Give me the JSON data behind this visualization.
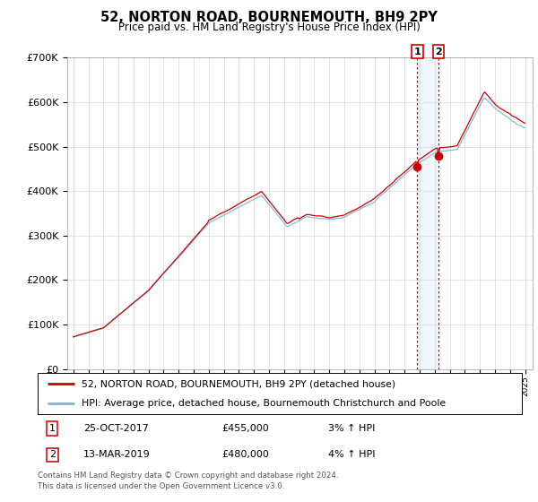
{
  "title": "52, NORTON ROAD, BOURNEMOUTH, BH9 2PY",
  "subtitle": "Price paid vs. HM Land Registry's House Price Index (HPI)",
  "ylim": [
    0,
    700000
  ],
  "yticks": [
    0,
    100000,
    200000,
    300000,
    400000,
    500000,
    600000,
    700000
  ],
  "ytick_labels": [
    "£0",
    "£100K",
    "£200K",
    "£300K",
    "£400K",
    "£500K",
    "£600K",
    "£700K"
  ],
  "sale1_price": 455000,
  "sale2_price": 480000,
  "sale1_label": "25-OCT-2017",
  "sale2_label": "13-MAR-2019",
  "sale1_pct": "3% ↑ HPI",
  "sale2_pct": "4% ↑ HPI",
  "sale1_price_str": "£455,000",
  "sale2_price_str": "£480,000",
  "legend1": "52, NORTON ROAD, BOURNEMOUTH, BH9 2PY (detached house)",
  "legend2": "HPI: Average price, detached house, Bournemouth Christchurch and Poole",
  "footer1": "Contains HM Land Registry data © Crown copyright and database right 2024.",
  "footer2": "This data is licensed under the Open Government Licence v3.0.",
  "hpi_color": "#7ab4d8",
  "sale_color": "#cc0000",
  "vline_color": "#cc0000",
  "span_color": "#d0e8f5",
  "bg_color": "#ffffff",
  "grid_color": "#cccccc"
}
